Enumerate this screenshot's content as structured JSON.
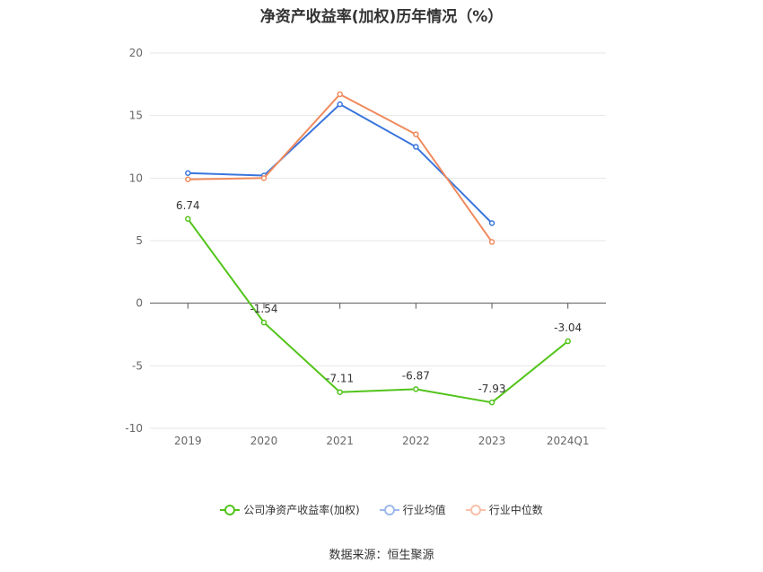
{
  "title": "净资产收益率(加权)历年情况（%）",
  "source": "数据来源：恒生聚源",
  "chart_data": {
    "type": "line",
    "title": "净资产收益率(加权)历年情况（%）",
    "categories": [
      "2019",
      "2020",
      "2021",
      "2022",
      "2023",
      "2024Q1"
    ],
    "ylim": [
      -10,
      20
    ],
    "yticks": [
      20,
      15,
      10,
      5,
      0,
      -5,
      -10
    ],
    "grid": true,
    "legend_position": "bottom",
    "series": [
      {
        "name": "公司净资产收益率(加权)",
        "color": "#52c41a",
        "values": [
          6.74,
          -1.54,
          -7.11,
          -6.87,
          -7.93,
          -3.04
        ],
        "labels": [
          "6.74",
          "-1.54",
          "-7.11",
          "-6.87",
          "-7.93",
          "-3.04"
        ]
      },
      {
        "name": "行业均值",
        "color": "#3a75dd",
        "values": [
          10.4,
          10.2,
          15.9,
          12.5,
          6.4,
          null
        ]
      },
      {
        "name": "行业中位数",
        "color": "#f08a5d",
        "values": [
          9.9,
          10.0,
          16.7,
          13.5,
          4.9,
          null
        ]
      }
    ]
  }
}
